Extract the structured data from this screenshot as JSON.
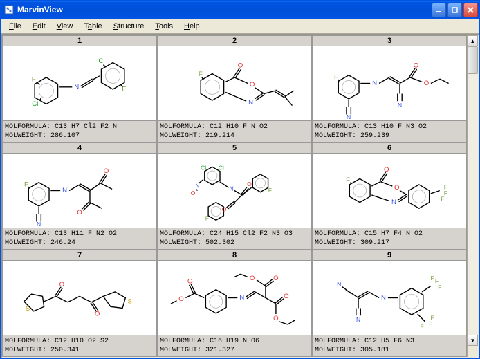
{
  "window": {
    "title": "MarvinView"
  },
  "menu": {
    "file": "File",
    "edit": "Edit",
    "view": "View",
    "table": "Table",
    "structure": "Structure",
    "tools": "Tools",
    "help": "Help"
  },
  "labels": {
    "molformula": "MOLFORMULA:",
    "molweight": "MOLWEIGHT:"
  },
  "colors": {
    "bond": "#000000",
    "nitrogen": "#304be0",
    "oxygen": "#e03030",
    "fluorine": "#78a040",
    "chlorine": "#1fa01f",
    "sulfur": "#c8a010",
    "cell_bg": "#d6d3ce"
  },
  "cells": [
    {
      "index": "1",
      "formula": "C13 H7 Cl2 F2 N",
      "weight": "286.107"
    },
    {
      "index": "2",
      "formula": "C12 H10 F N O2",
      "weight": "219.214"
    },
    {
      "index": "3",
      "formula": "C13 H10 F N3 O2",
      "weight": "259.239"
    },
    {
      "index": "4",
      "formula": "C13 H11 F N2 O2",
      "weight": "246.24"
    },
    {
      "index": "5",
      "formula": "C24 H15 Cl2 F2 N3 O3",
      "weight": "502.302"
    },
    {
      "index": "6",
      "formula": "C15 H7 F4 N O2",
      "weight": "309.217"
    },
    {
      "index": "7",
      "formula": "C12 H10 O2 S2",
      "weight": "250.341"
    },
    {
      "index": "8",
      "formula": "C16 H19 N O6",
      "weight": "321.327"
    },
    {
      "index": "9",
      "formula": "C12 H5 F6 N3",
      "weight": "305.181"
    }
  ]
}
